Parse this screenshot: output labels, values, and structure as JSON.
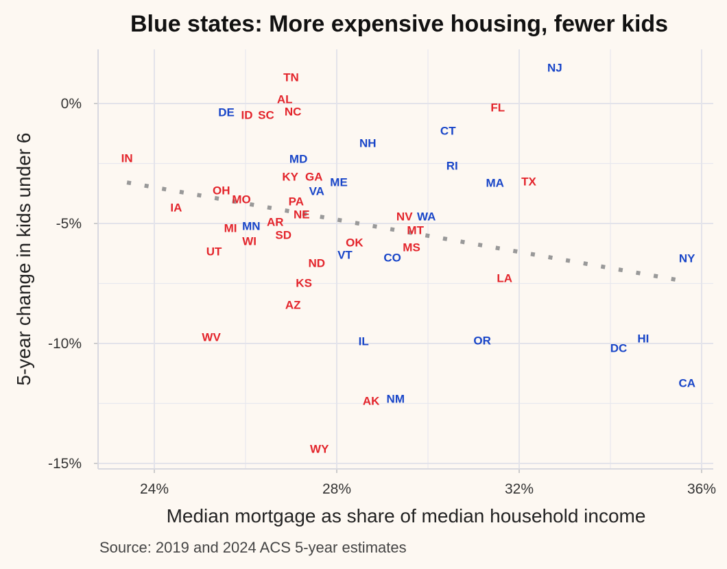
{
  "chart_data": {
    "type": "scatter",
    "title": "Blue states: More expensive housing, fewer kids",
    "xlabel": "Median mortgage as share of median household income",
    "ylabel": "5-year change in kids under 6",
    "caption": "Source: 2019 and 2024 ACS 5-year estimates",
    "xlim": [
      22.8,
      36.3
    ],
    "ylim": [
      -15.2,
      2.2
    ],
    "x_ticks": [
      {
        "v": 24,
        "label": "24%"
      },
      {
        "v": 28,
        "label": "28%"
      },
      {
        "v": 32,
        "label": "32%"
      },
      {
        "v": 36,
        "label": "36%"
      }
    ],
    "y_ticks": [
      {
        "v": 0,
        "label": "0%"
      },
      {
        "v": -5,
        "label": "-5%"
      },
      {
        "v": -10,
        "label": "-10%"
      },
      {
        "v": -15,
        "label": "-15%"
      }
    ],
    "grid": true,
    "colors": {
      "red": "#e3242b",
      "blue": "#1845c8",
      "trend": "#999999",
      "background": "#fdf8f2"
    },
    "trend_line": {
      "style": "dotted",
      "from": [
        23.4,
        -3.29
      ],
      "to": [
        35.7,
        -7.43
      ]
    },
    "points": [
      {
        "state": "TN",
        "x": 27.0,
        "y": 1.09,
        "party": "red"
      },
      {
        "state": "AL",
        "x": 26.86,
        "y": 0.17,
        "party": "red"
      },
      {
        "state": "NC",
        "x": 27.04,
        "y": -0.34,
        "party": "red"
      },
      {
        "state": "DE",
        "x": 25.64,
        "y": -0.37,
        "party": "blue"
      },
      {
        "state": "ID",
        "x": 26.0,
        "y": -0.49,
        "party": "red"
      },
      {
        "state": "SC",
        "x": 26.45,
        "y": -0.49,
        "party": "red"
      },
      {
        "state": "NJ",
        "x": 32.78,
        "y": 1.49,
        "party": "blue"
      },
      {
        "state": "FL",
        "x": 31.53,
        "y": -0.17,
        "party": "red"
      },
      {
        "state": "CT",
        "x": 30.44,
        "y": -1.14,
        "party": "blue"
      },
      {
        "state": "NH",
        "x": 28.68,
        "y": -1.66,
        "party": "blue"
      },
      {
        "state": "IN",
        "x": 23.4,
        "y": -2.29,
        "party": "red"
      },
      {
        "state": "MD",
        "x": 27.16,
        "y": -2.31,
        "party": "blue"
      },
      {
        "state": "RI",
        "x": 30.53,
        "y": -2.6,
        "party": "blue"
      },
      {
        "state": "KY",
        "x": 26.98,
        "y": -3.06,
        "party": "red"
      },
      {
        "state": "GA",
        "x": 27.62,
        "y": -3.11,
        "party": "red"
      },
      {
        "state": "ME",
        "x": 27.76,
        "y": -3.2,
        "party": "blue"
      },
      {
        "state": "MA",
        "x": 31.47,
        "y": -3.31,
        "party": "blue"
      },
      {
        "state": "TX",
        "x": 32.21,
        "y": -3.26,
        "party": "red"
      },
      {
        "state": "OH",
        "x": 25.47,
        "y": -3.63,
        "party": "red"
      },
      {
        "state": "VA",
        "x": 27.38,
        "y": -3.74,
        "party": "blue"
      },
      {
        "state": "MO",
        "x": 25.85,
        "y": -4.0,
        "party": "red"
      },
      {
        "state": "PA",
        "x": 27.11,
        "y": -4.09,
        "party": "red"
      },
      {
        "state": "IA",
        "x": 24.48,
        "y": -4.34,
        "party": "red"
      },
      {
        "state": "NE",
        "x": 27.23,
        "y": -4.63,
        "party": "red"
      },
      {
        "state": "NV",
        "x": 29.59,
        "y": -4.8,
        "party": "red"
      },
      {
        "state": "WA",
        "x": 29.89,
        "y": -4.8,
        "party": "blue"
      },
      {
        "state": "MT",
        "x": 29.74,
        "y": -5.09,
        "party": "red"
      },
      {
        "state": "AR",
        "x": 26.56,
        "y": -4.94,
        "party": "red"
      },
      {
        "state": "MI",
        "x": 25.88,
        "y": -5.2,
        "party": "red"
      },
      {
        "state": "WI",
        "x": 26.1,
        "y": -5.17,
        "party": "red"
      },
      {
        "state": "MN",
        "x": 26.2,
        "y": -5.11,
        "party": "blue"
      },
      {
        "state": "SD",
        "x": 26.83,
        "y": -5.49,
        "party": "red"
      },
      {
        "state": "OK",
        "x": 28.39,
        "y": -5.8,
        "party": "red"
      },
      {
        "state": "MS",
        "x": 29.64,
        "y": -6.0,
        "party": "red"
      },
      {
        "state": "UT",
        "x": 25.31,
        "y": -6.17,
        "party": "red"
      },
      {
        "state": "NY",
        "x": 35.68,
        "y": -6.46,
        "party": "blue"
      },
      {
        "state": "VT",
        "x": 28.18,
        "y": -6.31,
        "party": "blue"
      },
      {
        "state": "CO",
        "x": 29.22,
        "y": -6.43,
        "party": "blue"
      },
      {
        "state": "ND",
        "x": 27.56,
        "y": -6.66,
        "party": "red"
      },
      {
        "state": "LA",
        "x": 31.68,
        "y": -7.29,
        "party": "red"
      },
      {
        "state": "KS",
        "x": 27.28,
        "y": -7.49,
        "party": "red"
      },
      {
        "state": "AZ",
        "x": 27.04,
        "y": -8.4,
        "party": "red"
      },
      {
        "state": "WV",
        "x": 25.25,
        "y": -9.74,
        "party": "red"
      },
      {
        "state": "IL",
        "x": 28.59,
        "y": -9.91,
        "party": "blue"
      },
      {
        "state": "OR",
        "x": 31.19,
        "y": -9.89,
        "party": "blue"
      },
      {
        "state": "HI",
        "x": 34.72,
        "y": -9.8,
        "party": "blue"
      },
      {
        "state": "DC",
        "x": 34.18,
        "y": -10.2,
        "party": "blue"
      },
      {
        "state": "CA",
        "x": 35.68,
        "y": -11.66,
        "party": "blue"
      },
      {
        "state": "AK",
        "x": 28.83,
        "y": -12.4,
        "party": "red"
      },
      {
        "state": "NM",
        "x": 29.29,
        "y": -12.31,
        "party": "blue"
      },
      {
        "state": "WY",
        "x": 27.62,
        "y": -14.4,
        "party": "red"
      }
    ]
  }
}
